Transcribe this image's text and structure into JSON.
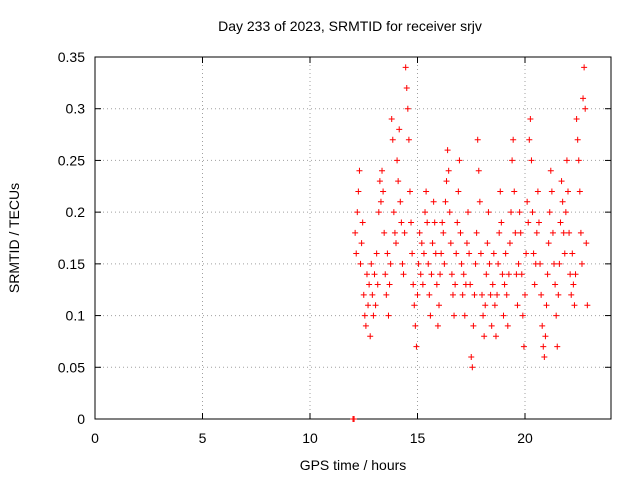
{
  "chart_data": {
    "type": "scatter",
    "title": "Day 233 of 2023, SRMTID for receiver srjv",
    "xlabel": "GPS time / hours",
    "ylabel": "SRMTID / TECUs",
    "xlim": [
      0,
      24
    ],
    "ylim": [
      0,
      0.35
    ],
    "xticks": [
      0,
      5,
      10,
      15,
      20
    ],
    "yticks": [
      0,
      0.05,
      0.1,
      0.15,
      0.2,
      0.25,
      0.3,
      0.35
    ],
    "xtick_labels": [
      "0",
      "5",
      "10",
      "15",
      "20"
    ],
    "ytick_labels": [
      "0",
      "0.05",
      "0.1",
      "0.15",
      "0.2",
      "0.25",
      "0.3",
      "0.35"
    ],
    "grid": true,
    "marker": "+",
    "color": "#ff0000",
    "series": [
      {
        "name": "SRMTID",
        "points": [
          [
            12.0,
            0.0
          ],
          [
            12.05,
            0.0
          ],
          [
            12.1,
            0.18
          ],
          [
            12.15,
            0.16
          ],
          [
            12.2,
            0.2
          ],
          [
            12.25,
            0.22
          ],
          [
            12.3,
            0.24
          ],
          [
            12.35,
            0.15
          ],
          [
            12.4,
            0.17
          ],
          [
            12.45,
            0.19
          ],
          [
            12.5,
            0.12
          ],
          [
            12.55,
            0.1
          ],
          [
            12.6,
            0.09
          ],
          [
            12.65,
            0.14
          ],
          [
            12.7,
            0.11
          ],
          [
            12.75,
            0.13
          ],
          [
            12.8,
            0.08
          ],
          [
            12.85,
            0.15
          ],
          [
            12.9,
            0.12
          ],
          [
            12.95,
            0.1
          ],
          [
            13.0,
            0.14
          ],
          [
            13.05,
            0.11
          ],
          [
            13.1,
            0.16
          ],
          [
            13.15,
            0.13
          ],
          [
            13.2,
            0.2
          ],
          [
            13.25,
            0.23
          ],
          [
            13.3,
            0.21
          ],
          [
            13.35,
            0.24
          ],
          [
            13.4,
            0.22
          ],
          [
            13.45,
            0.18
          ],
          [
            13.5,
            0.14
          ],
          [
            13.55,
            0.12
          ],
          [
            13.6,
            0.16
          ],
          [
            13.65,
            0.1
          ],
          [
            13.7,
            0.13
          ],
          [
            13.75,
            0.15
          ],
          [
            13.8,
            0.29
          ],
          [
            13.85,
            0.27
          ],
          [
            13.9,
            0.2
          ],
          [
            13.95,
            0.18
          ],
          [
            14.0,
            0.17
          ],
          [
            14.05,
            0.25
          ],
          [
            14.1,
            0.23
          ],
          [
            14.15,
            0.28
          ],
          [
            14.2,
            0.21
          ],
          [
            14.25,
            0.19
          ],
          [
            14.3,
            0.15
          ],
          [
            14.35,
            0.14
          ],
          [
            14.4,
            0.18
          ],
          [
            14.45,
            0.34
          ],
          [
            14.5,
            0.32
          ],
          [
            14.55,
            0.3
          ],
          [
            14.6,
            0.27
          ],
          [
            14.65,
            0.22
          ],
          [
            14.7,
            0.19
          ],
          [
            14.75,
            0.16
          ],
          [
            14.8,
            0.13
          ],
          [
            14.85,
            0.11
          ],
          [
            14.9,
            0.09
          ],
          [
            14.95,
            0.07
          ],
          [
            15.0,
            0.12
          ],
          [
            15.05,
            0.15
          ],
          [
            15.1,
            0.18
          ],
          [
            15.15,
            0.14
          ],
          [
            15.2,
            0.17
          ],
          [
            15.25,
            0.13
          ],
          [
            15.3,
            0.16
          ],
          [
            15.35,
            0.2
          ],
          [
            15.4,
            0.22
          ],
          [
            15.45,
            0.19
          ],
          [
            15.5,
            0.15
          ],
          [
            15.55,
            0.12
          ],
          [
            15.6,
            0.1
          ],
          [
            15.65,
            0.14
          ],
          [
            15.7,
            0.17
          ],
          [
            15.75,
            0.21
          ],
          [
            15.8,
            0.19
          ],
          [
            15.85,
            0.16
          ],
          [
            15.9,
            0.13
          ],
          [
            15.95,
            0.09
          ],
          [
            16.0,
            0.11
          ],
          [
            16.05,
            0.14
          ],
          [
            16.1,
            0.16
          ],
          [
            16.15,
            0.19
          ],
          [
            16.2,
            0.18
          ],
          [
            16.25,
            0.15
          ],
          [
            16.3,
            0.21
          ],
          [
            16.35,
            0.23
          ],
          [
            16.4,
            0.26
          ],
          [
            16.45,
            0.24
          ],
          [
            16.5,
            0.2
          ],
          [
            16.55,
            0.17
          ],
          [
            16.6,
            0.14
          ],
          [
            16.65,
            0.12
          ],
          [
            16.7,
            0.1
          ],
          [
            16.75,
            0.13
          ],
          [
            16.8,
            0.16
          ],
          [
            16.85,
            0.19
          ],
          [
            16.9,
            0.22
          ],
          [
            16.95,
            0.25
          ],
          [
            17.0,
            0.18
          ],
          [
            17.05,
            0.15
          ],
          [
            17.1,
            0.12
          ],
          [
            17.15,
            0.14
          ],
          [
            17.2,
            0.1
          ],
          [
            17.25,
            0.13
          ],
          [
            17.3,
            0.17
          ],
          [
            17.35,
            0.2
          ],
          [
            17.4,
            0.16
          ],
          [
            17.45,
            0.13
          ],
          [
            17.5,
            0.06
          ],
          [
            17.55,
            0.05
          ],
          [
            17.6,
            0.09
          ],
          [
            17.65,
            0.12
          ],
          [
            17.7,
            0.15
          ],
          [
            17.75,
            0.18
          ],
          [
            17.8,
            0.27
          ],
          [
            17.85,
            0.24
          ],
          [
            17.9,
            0.21
          ],
          [
            17.95,
            0.16
          ],
          [
            18.0,
            0.12
          ],
          [
            18.05,
            0.1
          ],
          [
            18.1,
            0.08
          ],
          [
            18.15,
            0.11
          ],
          [
            18.2,
            0.14
          ],
          [
            18.25,
            0.17
          ],
          [
            18.3,
            0.2
          ],
          [
            18.35,
            0.15
          ],
          [
            18.4,
            0.12
          ],
          [
            18.45,
            0.09
          ],
          [
            18.5,
            0.13
          ],
          [
            18.55,
            0.16
          ],
          [
            18.6,
            0.11
          ],
          [
            18.65,
            0.08
          ],
          [
            18.7,
            0.12
          ],
          [
            18.75,
            0.15
          ],
          [
            18.8,
            0.18
          ],
          [
            18.85,
            0.22
          ],
          [
            18.9,
            0.19
          ],
          [
            18.95,
            0.14
          ],
          [
            19.0,
            0.1
          ],
          [
            19.05,
            0.13
          ],
          [
            19.1,
            0.16
          ],
          [
            19.15,
            0.12
          ],
          [
            19.2,
            0.09
          ],
          [
            19.25,
            0.14
          ],
          [
            19.3,
            0.17
          ],
          [
            19.35,
            0.2
          ],
          [
            19.4,
            0.25
          ],
          [
            19.45,
            0.27
          ],
          [
            19.5,
            0.22
          ],
          [
            19.55,
            0.18
          ],
          [
            19.6,
            0.14
          ],
          [
            19.65,
            0.11
          ],
          [
            19.7,
            0.15
          ],
          [
            19.75,
            0.2
          ],
          [
            19.8,
            0.18
          ],
          [
            19.85,
            0.14
          ],
          [
            19.9,
            0.1
          ],
          [
            19.95,
            0.07
          ],
          [
            20.0,
            0.12
          ],
          [
            20.05,
            0.16
          ],
          [
            20.1,
            0.21
          ],
          [
            20.15,
            0.19
          ],
          [
            20.2,
            0.27
          ],
          [
            20.25,
            0.29
          ],
          [
            20.3,
            0.25
          ],
          [
            20.35,
            0.2
          ],
          [
            20.4,
            0.16
          ],
          [
            20.45,
            0.13
          ],
          [
            20.5,
            0.15
          ],
          [
            20.55,
            0.18
          ],
          [
            20.6,
            0.22
          ],
          [
            20.65,
            0.19
          ],
          [
            20.7,
            0.15
          ],
          [
            20.75,
            0.12
          ],
          [
            20.8,
            0.09
          ],
          [
            20.85,
            0.07
          ],
          [
            20.9,
            0.06
          ],
          [
            20.95,
            0.08
          ],
          [
            21.0,
            0.11
          ],
          [
            21.05,
            0.14
          ],
          [
            21.1,
            0.17
          ],
          [
            21.15,
            0.2
          ],
          [
            21.2,
            0.24
          ],
          [
            21.25,
            0.22
          ],
          [
            21.3,
            0.18
          ],
          [
            21.35,
            0.15
          ],
          [
            21.4,
            0.13
          ],
          [
            21.45,
            0.1
          ],
          [
            21.5,
            0.07
          ],
          [
            21.55,
            0.12
          ],
          [
            21.6,
            0.15
          ],
          [
            21.65,
            0.19
          ],
          [
            21.7,
            0.23
          ],
          [
            21.75,
            0.21
          ],
          [
            21.8,
            0.18
          ],
          [
            21.85,
            0.16
          ],
          [
            21.9,
            0.2
          ],
          [
            21.95,
            0.25
          ],
          [
            22.0,
            0.22
          ],
          [
            22.05,
            0.18
          ],
          [
            22.1,
            0.14
          ],
          [
            22.15,
            0.12
          ],
          [
            22.2,
            0.16
          ],
          [
            22.25,
            0.13
          ],
          [
            22.3,
            0.11
          ],
          [
            22.35,
            0.14
          ],
          [
            22.4,
            0.29
          ],
          [
            22.45,
            0.27
          ],
          [
            22.5,
            0.25
          ],
          [
            22.55,
            0.22
          ],
          [
            22.6,
            0.18
          ],
          [
            22.65,
            0.15
          ],
          [
            22.7,
            0.31
          ],
          [
            22.75,
            0.34
          ],
          [
            22.8,
            0.3
          ],
          [
            22.85,
            0.17
          ],
          [
            22.9,
            0.11
          ]
        ]
      }
    ]
  }
}
